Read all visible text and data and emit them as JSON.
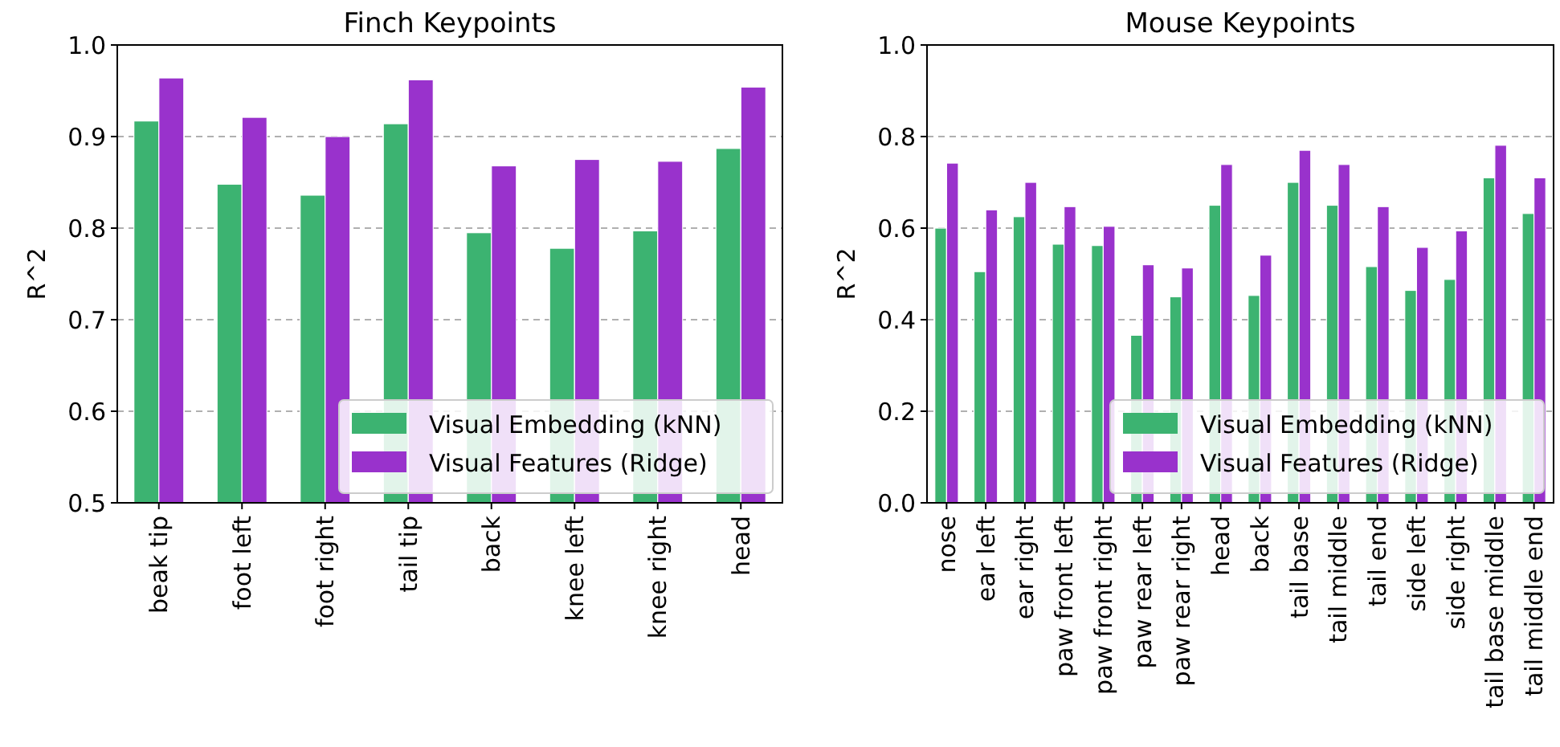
{
  "chart_data": [
    {
      "type": "bar",
      "title": "Finch Keypoints",
      "ylabel": "R^2",
      "categories": [
        "beak tip",
        "foot left",
        "foot right",
        "tail tip",
        "back",
        "knee left",
        "knee right",
        "head"
      ],
      "series": [
        {
          "name": "Visual Embedding (kNN)",
          "color": "#3cb371",
          "values": [
            0.917,
            0.848,
            0.836,
            0.914,
            0.795,
            0.778,
            0.797,
            0.887
          ]
        },
        {
          "name": "Visual Features (Ridge)",
          "color": "#9932cc",
          "values": [
            0.964,
            0.921,
            0.9,
            0.962,
            0.868,
            0.875,
            0.873,
            0.954
          ]
        }
      ],
      "ylim": [
        0.5,
        1.0
      ],
      "yticks": [
        {
          "value": 0.5,
          "label": "0.5"
        },
        {
          "value": 0.6,
          "label": "0.6"
        },
        {
          "value": 0.7,
          "label": "0.7"
        },
        {
          "value": 0.8,
          "label": "0.8"
        },
        {
          "value": 0.9,
          "label": "0.9"
        },
        {
          "value": 1.0,
          "label": "1.0"
        }
      ],
      "grid": "y",
      "legend": "bottom right"
    },
    {
      "type": "bar",
      "title": "Mouse Keypoints",
      "ylabel": "R^2",
      "categories": [
        "nose",
        "ear left",
        "ear right",
        "paw front left",
        "paw front right",
        "paw rear left",
        "paw rear right",
        "head",
        "back",
        "tail base",
        "tail middle",
        "tail end",
        "side left",
        "side right",
        "tail base middle",
        "tail middle end"
      ],
      "series": [
        {
          "name": "Visual Embedding (kNN)",
          "color": "#3cb371",
          "values": [
            0.6,
            0.505,
            0.625,
            0.565,
            0.562,
            0.366,
            0.45,
            0.65,
            0.453,
            0.7,
            0.65,
            0.516,
            0.464,
            0.488,
            0.71,
            0.632
          ]
        },
        {
          "name": "Visual Features (Ridge)",
          "color": "#9932cc",
          "values": [
            0.742,
            0.64,
            0.7,
            0.647,
            0.604,
            0.52,
            0.513,
            0.739,
            0.541,
            0.77,
            0.739,
            0.647,
            0.558,
            0.594,
            0.781,
            0.71
          ]
        }
      ],
      "ylim": [
        0.0,
        1.0
      ],
      "yticks": [
        {
          "value": 0,
          "label": "0.0"
        },
        {
          "value": 0.2,
          "label": "0.2"
        },
        {
          "value": 0.4,
          "label": "0.4"
        },
        {
          "value": 0.6,
          "label": "0.6"
        },
        {
          "value": 0.8,
          "label": "0.8"
        },
        {
          "value": 1.0,
          "label": "1.0"
        }
      ],
      "grid": "y",
      "legend": "bottom right"
    }
  ]
}
